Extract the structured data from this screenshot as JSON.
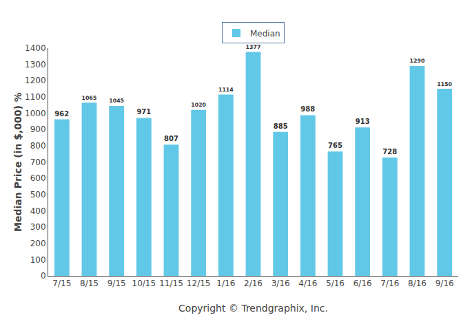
{
  "chart_data": {
    "type": "bar",
    "categories": [
      "7/15",
      "8/15",
      "9/15",
      "10/15",
      "11/15",
      "12/15",
      "1/16",
      "2/16",
      "3/16",
      "4/16",
      "5/16",
      "6/16",
      "7/16",
      "8/16",
      "9/16"
    ],
    "series": [
      {
        "name": "Median",
        "color": "#62C8E8",
        "values": [
          962,
          1065,
          1045,
          971,
          807,
          1020,
          1114,
          1377,
          885,
          988,
          765,
          913,
          728,
          1290,
          1150
        ]
      }
    ],
    "xlabel": "Copyright © Trendgraphix, Inc.",
    "ylabel": "Median Price (in $,000) %",
    "ylim": [
      0,
      1400
    ],
    "yticks": [
      0,
      100,
      200,
      300,
      400,
      500,
      600,
      700,
      800,
      900,
      1000,
      1100,
      1200,
      1300,
      1400
    ],
    "grid": false,
    "legend": "top",
    "data_labels": true
  }
}
